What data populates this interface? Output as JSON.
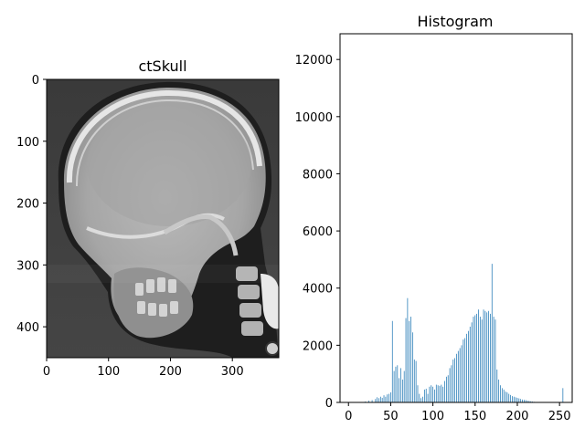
{
  "figure": {
    "image_title": "ctSkull",
    "histogram_title": "Histogram"
  },
  "image_panel": {
    "x_ticks": [
      0,
      100,
      200,
      300
    ],
    "y_ticks": [
      0,
      100,
      200,
      300,
      400
    ],
    "xlim": [
      0,
      375
    ],
    "ylim": [
      450,
      0
    ]
  },
  "colors": {
    "bar": "#1f77b4",
    "axes": "#000000",
    "background": "#ffffff"
  },
  "chart_data": {
    "type": "bar",
    "title": "Histogram",
    "xlabel": "",
    "ylabel": "",
    "xlim": [
      -10,
      265
    ],
    "ylim": [
      0,
      12900
    ],
    "x_ticks": [
      0,
      50,
      100,
      150,
      200,
      250
    ],
    "y_ticks": [
      0,
      2000,
      4000,
      6000,
      8000,
      10000,
      12000
    ],
    "grid": false,
    "x": [
      20,
      24,
      28,
      32,
      34,
      36,
      38,
      40,
      42,
      44,
      46,
      48,
      50,
      52,
      54,
      56,
      58,
      60,
      62,
      64,
      66,
      68,
      70,
      72,
      74,
      76,
      78,
      80,
      82,
      84,
      86,
      88,
      90,
      92,
      94,
      96,
      98,
      100,
      102,
      104,
      106,
      108,
      110,
      112,
      114,
      116,
      118,
      120,
      122,
      124,
      126,
      128,
      130,
      132,
      134,
      136,
      138,
      140,
      142,
      144,
      146,
      148,
      150,
      152,
      154,
      156,
      158,
      160,
      162,
      164,
      166,
      168,
      170,
      172,
      174,
      176,
      178,
      180,
      182,
      184,
      186,
      188,
      190,
      192,
      194,
      196,
      198,
      200,
      202,
      204,
      206,
      208,
      210,
      212,
      214,
      216,
      218,
      220,
      222,
      224,
      226,
      228,
      230,
      232,
      234,
      236,
      238,
      240,
      242,
      244,
      246,
      248,
      250,
      252,
      254
    ],
    "values": [
      30,
      60,
      80,
      120,
      180,
      150,
      200,
      160,
      250,
      200,
      280,
      300,
      350,
      2850,
      1100,
      1250,
      1300,
      850,
      1200,
      800,
      1100,
      2950,
      3650,
      2850,
      3000,
      2450,
      1500,
      1450,
      600,
      300,
      150,
      200,
      450,
      480,
      300,
      550,
      600,
      550,
      450,
      620,
      600,
      580,
      620,
      550,
      750,
      900,
      950,
      1200,
      1300,
      1500,
      1550,
      1700,
      1800,
      1900,
      2000,
      2200,
      2250,
      2400,
      2500,
      2650,
      2800,
      3000,
      3050,
      3100,
      3250,
      3000,
      2900,
      3250,
      3200,
      3150,
      3200,
      3100,
      4850,
      3000,
      2900,
      1150,
      800,
      600,
      500,
      450,
      380,
      350,
      300,
      260,
      220,
      200,
      180,
      160,
      140,
      120,
      100,
      90,
      80,
      60,
      50,
      40,
      30,
      20,
      15,
      10,
      10,
      10,
      10,
      10,
      10,
      10,
      10,
      10,
      10,
      10,
      10,
      10,
      10,
      10,
      500
    ]
  }
}
